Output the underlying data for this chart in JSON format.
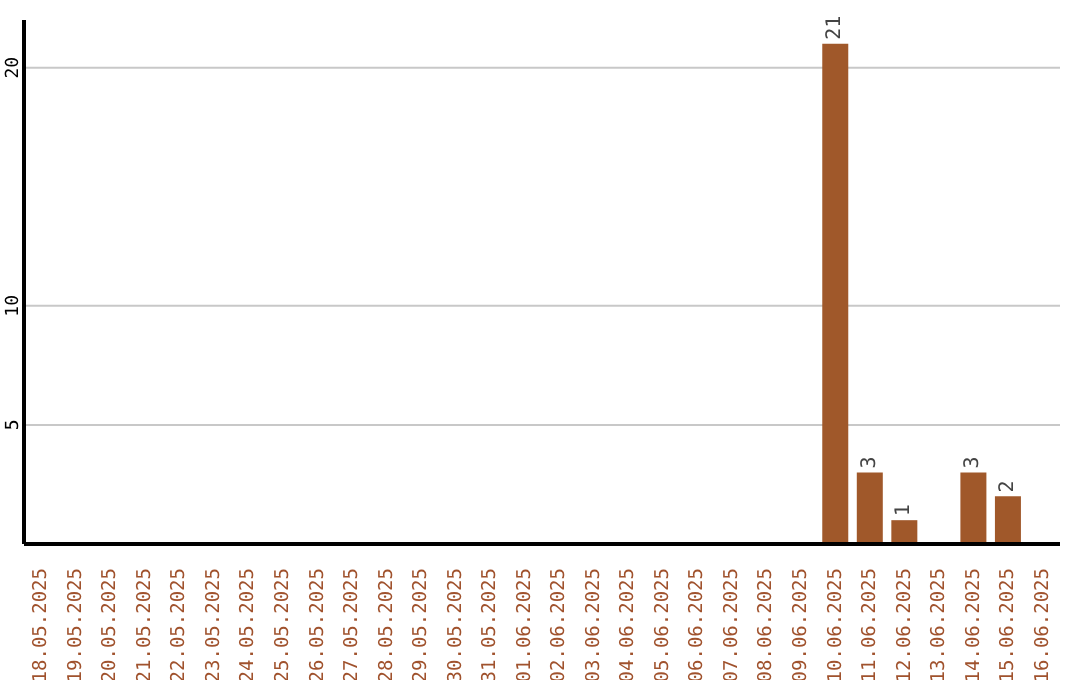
{
  "chart_data": {
    "type": "bar",
    "categories": [
      "18.05.2025",
      "19.05.2025",
      "20.05.2025",
      "21.05.2025",
      "22.05.2025",
      "23.05.2025",
      "24.05.2025",
      "25.05.2025",
      "26.05.2025",
      "27.05.2025",
      "28.05.2025",
      "29.05.2025",
      "30.05.2025",
      "31.05.2025",
      "01.06.2025",
      "02.06.2025",
      "03.06.2025",
      "04.06.2025",
      "05.06.2025",
      "06.06.2025",
      "07.06.2025",
      "08.06.2025",
      "09.06.2025",
      "10.06.2025",
      "11.06.2025",
      "12.06.2025",
      "13.06.2025",
      "14.06.2025",
      "15.06.2025",
      "16.06.2025"
    ],
    "values": [
      0,
      0,
      0,
      0,
      0,
      0,
      0,
      0,
      0,
      0,
      0,
      0,
      0,
      0,
      0,
      0,
      0,
      0,
      0,
      0,
      0,
      0,
      0,
      21,
      3,
      1,
      0,
      3,
      2,
      0
    ],
    "value_labels": [
      null,
      null,
      null,
      null,
      null,
      null,
      null,
      null,
      null,
      null,
      null,
      null,
      null,
      null,
      null,
      null,
      null,
      null,
      null,
      null,
      null,
      null,
      null,
      "21",
      "3",
      "1",
      null,
      "3",
      "2",
      null
    ],
    "color": "#a0582a",
    "ylim": [
      0,
      22
    ],
    "yticks": [
      5,
      10,
      20
    ],
    "grid": "y"
  }
}
